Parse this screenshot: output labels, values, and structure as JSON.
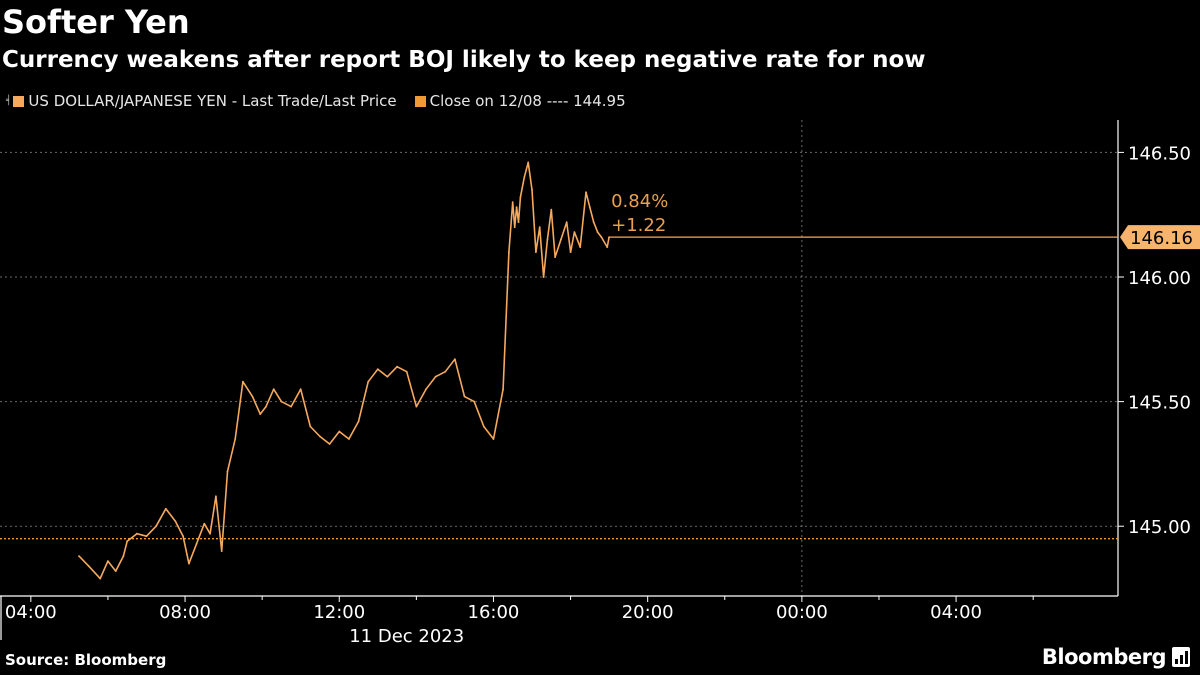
{
  "header": {
    "title": "Softer Yen",
    "subtitle": "Currency weakens after report BOJ likely to keep negative rate for now"
  },
  "legend": {
    "items": [
      {
        "label": "US DOLLAR/JAPANESE YEN - Last Trade/Last Price",
        "color": "#f6a95c",
        "icon": "candle-icon"
      },
      {
        "label": "Close on 12/08 ---- 144.95",
        "color": "#f09a35"
      }
    ]
  },
  "footer": {
    "source": "Source: Bloomberg",
    "brand": "Bloomberg"
  },
  "chart_data": {
    "type": "line",
    "title": "Softer Yen",
    "subtitle": "Currency weakens after report BOJ likely to keep negative rate for now",
    "series": [
      {
        "name": "US DOLLAR/JAPANESE YEN - Last Trade/Last Price",
        "color": "#f6a95c",
        "x_hours": [
          5.25,
          5.5,
          5.8,
          6.0,
          6.2,
          6.4,
          6.5,
          6.75,
          7.0,
          7.25,
          7.5,
          7.75,
          7.95,
          8.1,
          8.3,
          8.5,
          8.65,
          8.8,
          8.95,
          9.1,
          9.3,
          9.5,
          9.75,
          9.95,
          10.1,
          10.3,
          10.5,
          10.75,
          11.0,
          11.25,
          11.5,
          11.75,
          12.0,
          12.25,
          12.5,
          12.75,
          13.0,
          13.25,
          13.5,
          13.75,
          14.0,
          14.25,
          14.5,
          14.75,
          15.0,
          15.25,
          15.5,
          15.75,
          16.0,
          16.25,
          16.4,
          16.5,
          16.55,
          16.6,
          16.65,
          16.7,
          16.8,
          16.9,
          17.0,
          17.1,
          17.2,
          17.3,
          17.4,
          17.5,
          17.6,
          17.75,
          17.9,
          18.0,
          18.1,
          18.25,
          18.4,
          18.5,
          18.6,
          18.7,
          18.8,
          18.95,
          19.0
        ],
        "values": [
          144.88,
          144.84,
          144.79,
          144.86,
          144.82,
          144.88,
          144.94,
          144.97,
          144.96,
          145.0,
          145.07,
          145.02,
          144.96,
          144.85,
          144.93,
          145.01,
          144.97,
          145.12,
          144.9,
          145.22,
          145.35,
          145.58,
          145.52,
          145.45,
          145.48,
          145.55,
          145.5,
          145.48,
          145.55,
          145.4,
          145.36,
          145.33,
          145.38,
          145.35,
          145.42,
          145.58,
          145.63,
          145.6,
          145.64,
          145.62,
          145.48,
          145.55,
          145.6,
          145.62,
          145.67,
          145.52,
          145.5,
          145.4,
          145.35,
          145.55,
          146.1,
          146.3,
          146.2,
          146.28,
          146.22,
          146.32,
          146.4,
          146.46,
          146.35,
          146.1,
          146.2,
          146.0,
          146.15,
          146.27,
          146.08,
          146.15,
          146.22,
          146.1,
          146.18,
          146.12,
          146.34,
          146.28,
          146.22,
          146.18,
          146.16,
          146.12,
          146.16
        ]
      }
    ],
    "reference_line": {
      "label": "Close on 12/08",
      "value": 144.95
    },
    "last_value": {
      "label": "146.16",
      "value": 146.16
    },
    "annotations": {
      "percent_change": "0.84%",
      "absolute_change": "+1.22"
    },
    "xlim_hours": [
      3.2,
      32.2
    ],
    "x_ticks": [
      {
        "hour": 4,
        "label": "04:00"
      },
      {
        "hour": 8,
        "label": "08:00"
      },
      {
        "hour": 12,
        "label": "12:00"
      },
      {
        "hour": 16,
        "label": "16:00"
      },
      {
        "hour": 20,
        "label": "20:00"
      },
      {
        "hour": 24,
        "label": "00:00"
      },
      {
        "hour": 28,
        "label": "04:00"
      }
    ],
    "x_minor_hours": [
      6,
      10,
      14,
      18,
      22,
      26,
      30
    ],
    "x_grid_hours": [
      24
    ],
    "x_sublabel": "11 Dec 2023",
    "ylim": [
      144.72,
      146.63
    ],
    "y_ticks": [
      {
        "value": 145.0,
        "label": "145.00"
      },
      {
        "value": 145.5,
        "label": "145.50"
      },
      {
        "value": 146.0,
        "label": "146.00"
      },
      {
        "value": 146.5,
        "label": "146.50"
      }
    ],
    "grid": true,
    "colors": {
      "line": "#f6a95c",
      "reference": "#f09a35",
      "label_bg": "#f6b46c",
      "annotation": "#e7a04f",
      "grid": "#6a6a6a",
      "axis": "#ffffff"
    }
  }
}
